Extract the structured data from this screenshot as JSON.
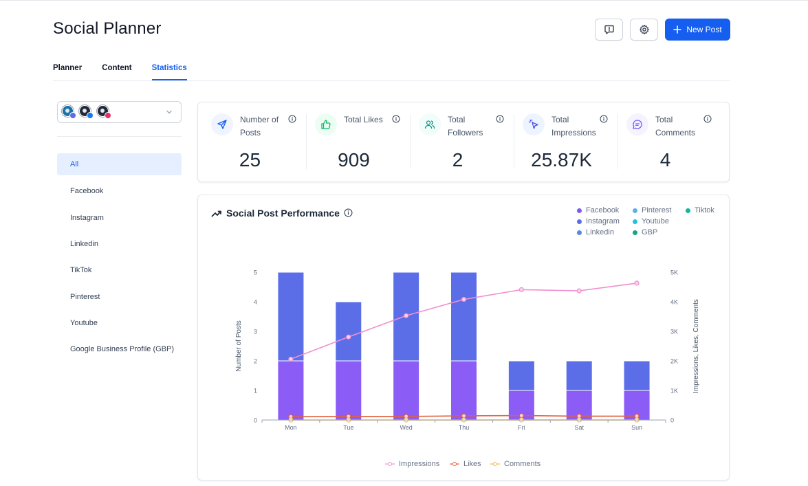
{
  "header": {
    "title": "Social Planner",
    "new_post_label": "New Post"
  },
  "tabs": [
    {
      "label": "Planner",
      "active": false
    },
    {
      "label": "Content",
      "active": false
    },
    {
      "label": "Statistics",
      "active": true
    }
  ],
  "sidebar": {
    "items": [
      {
        "label": "All",
        "active": true
      },
      {
        "label": "Facebook"
      },
      {
        "label": "Instagram"
      },
      {
        "label": "Linkedin"
      },
      {
        "label": "TikTok"
      },
      {
        "label": "Pinterest"
      },
      {
        "label": "Youtube"
      },
      {
        "label": "Google Business Profile (GBP)"
      }
    ]
  },
  "stats": [
    {
      "label": "Number of Posts",
      "value": "25",
      "icon": "send-icon",
      "icon_color": "#155eef",
      "icon_bg": "#eff4ff"
    },
    {
      "label": "Total Likes",
      "value": "909",
      "icon": "thumbs-up-icon",
      "icon_color": "#12b76a",
      "icon_bg": "#ecfdf3"
    },
    {
      "label": "Total Followers",
      "value": "2",
      "icon": "users-icon",
      "icon_color": "#0e9384",
      "icon_bg": "#f0fdf9"
    },
    {
      "label": "Total Impressions",
      "value": "25.87K",
      "icon": "cursor-click-icon",
      "icon_color": "#444ce7",
      "icon_bg": "#eef4ff"
    },
    {
      "label": "Total Comments",
      "value": "4",
      "icon": "message-icon",
      "icon_color": "#7a5af8",
      "icon_bg": "#f4f3ff"
    }
  ],
  "chart_title": "Social Post Performance",
  "platform_legend": [
    {
      "name": "Facebook",
      "color": "#7c5cef"
    },
    {
      "name": "Instagram",
      "color": "#5b6ee8"
    },
    {
      "name": "Linkedin",
      "color": "#5b86e5"
    },
    {
      "name": "Pinterest",
      "color": "#5ab1e8"
    },
    {
      "name": "Youtube",
      "color": "#22c3d6"
    },
    {
      "name": "GBP",
      "color": "#14a38b"
    },
    {
      "name": "Tiktok",
      "color": "#16b596"
    }
  ],
  "chart_data": {
    "type": "bar",
    "categories": [
      "Mon",
      "Tue",
      "Wed",
      "Thu",
      "Fri",
      "Sat",
      "Sun"
    ],
    "ylabel": "Number of Posts",
    "y2label": "Impressions, Likes, Comments",
    "ylim": [
      0,
      5
    ],
    "y2lim": [
      0,
      5000
    ],
    "yticks": [
      "0",
      "1",
      "2",
      "3",
      "4",
      "5"
    ],
    "y2ticks": [
      "0",
      "1K",
      "2K",
      "3K",
      "4K",
      "5K"
    ],
    "series": [
      {
        "name": "Facebook",
        "type": "bar",
        "stack": "posts",
        "color": "#8b5cf6",
        "values": [
          2,
          2,
          2,
          2,
          1,
          1,
          1
        ]
      },
      {
        "name": "Instagram",
        "type": "bar",
        "stack": "posts",
        "color": "#5b6ee8",
        "values": [
          3,
          2,
          3,
          3,
          1,
          1,
          1
        ]
      },
      {
        "name": "Impressions",
        "type": "line",
        "axis": "right",
        "color": "#f08fcd",
        "values": [
          2060,
          2810,
          3530,
          4080,
          4410,
          4370,
          4630
        ]
      },
      {
        "name": "Likes",
        "type": "line",
        "axis": "right",
        "color": "#e2603f",
        "values": [
          110,
          120,
          120,
          140,
          150,
          130,
          130
        ]
      },
      {
        "name": "Comments",
        "type": "line",
        "axis": "right",
        "color": "#f5b743",
        "values": [
          0,
          0,
          0,
          0,
          2,
          1,
          1
        ]
      }
    ]
  }
}
